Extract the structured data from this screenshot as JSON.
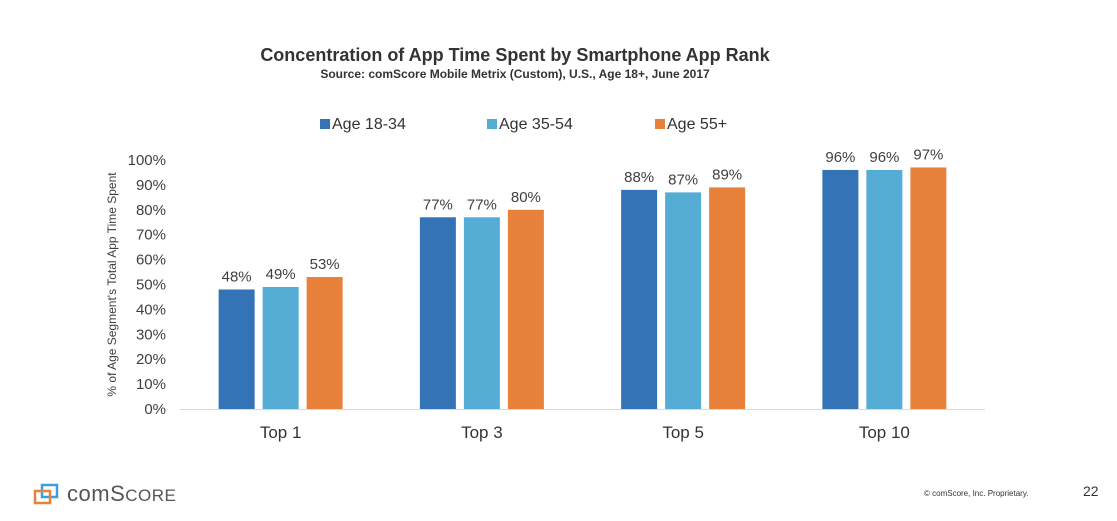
{
  "chart_data": {
    "type": "bar",
    "title": "Concentration of App Time Spent by Smartphone App Rank",
    "subtitle": "Source: comScore Mobile Metrix (Custom), U.S., Age 18+, June 2017",
    "xlabel": "",
    "ylabel": "% of Age Segment's Total App Time Spent",
    "ylim": [
      0,
      100
    ],
    "yticks": [
      0,
      10,
      20,
      30,
      40,
      50,
      60,
      70,
      80,
      90,
      100
    ],
    "ytick_labels": [
      "0%",
      "10%",
      "20%",
      "30%",
      "40%",
      "50%",
      "60%",
      "70%",
      "80%",
      "90%",
      "100%"
    ],
    "grid": false,
    "legend_position": "top",
    "categories": [
      "Top 1",
      "Top 3",
      "Top 5",
      "Top 10"
    ],
    "series": [
      {
        "name": "Age 18-34",
        "color": "#3474b6",
        "values": [
          48,
          77,
          88,
          96
        ],
        "labels": [
          "48%",
          "77%",
          "88%",
          "96%"
        ]
      },
      {
        "name": "Age 35-54",
        "color": "#55acd5",
        "values": [
          49,
          77,
          87,
          96
        ],
        "labels": [
          "49%",
          "77%",
          "87%",
          "96%"
        ]
      },
      {
        "name": "Age 55+",
        "color": "#e8813c",
        "values": [
          53,
          80,
          89,
          97
        ],
        "labels": [
          "53%",
          "80%",
          "89%",
          "97%"
        ]
      }
    ]
  },
  "footer": {
    "logo_text_prefix": "com",
    "logo_text_suffix": "Score",
    "copyright": "© comScore, Inc. Proprietary.",
    "page_number": "22"
  }
}
